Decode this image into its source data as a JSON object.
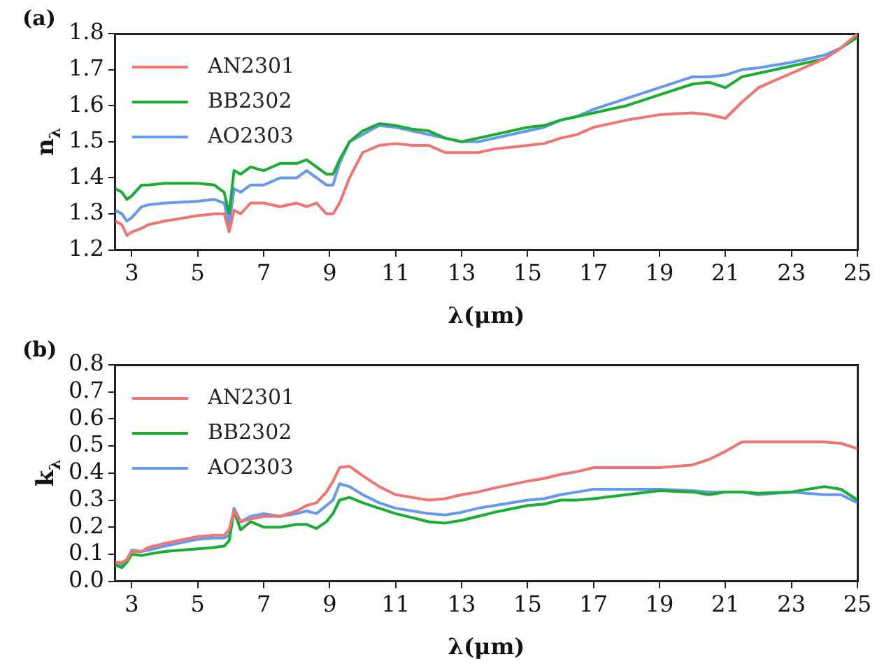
{
  "chart_data": [
    {
      "type": "line",
      "title": "(a)",
      "xlabel": "λ(μm)",
      "ylabel": "n$_{λ}$",
      "legend": "top left",
      "grid": false,
      "marker": "none",
      "line_style": "solid",
      "xlim": [
        2.5,
        25
      ],
      "xticks": [
        3,
        5,
        7,
        9,
        11,
        13,
        15,
        17,
        19,
        21,
        23,
        25
      ],
      "ylim": [
        1.2,
        1.8
      ],
      "yticks": [
        {
          "value": 1.2,
          "label": "1.2"
        },
        {
          "value": 1.3,
          "label": "1.3"
        },
        {
          "value": 1.4,
          "label": "1.4"
        },
        {
          "value": 1.5,
          "label": "1.5"
        },
        {
          "value": 1.6,
          "label": "1.6"
        },
        {
          "value": 1.7,
          "label": "1.7"
        },
        {
          "value": 1.8,
          "label": "1.8"
        }
      ],
      "x": [
        2.5,
        2.7,
        2.85,
        3,
        3.3,
        3.5,
        4,
        5,
        5.5,
        5.8,
        5.95,
        6.1,
        6.3,
        6.6,
        7,
        7.5,
        8,
        8.3,
        8.6,
        8.9,
        9.1,
        9.3,
        9.6,
        10,
        10.5,
        11,
        11.5,
        12,
        12.5,
        13,
        13.5,
        14,
        15,
        15.5,
        16,
        16.5,
        17,
        18,
        19,
        20,
        20.5,
        21,
        21.5,
        22,
        23,
        24,
        24.5,
        25
      ],
      "series": [
        {
          "name": "AN2301",
          "color": "#f07470",
          "values": [
            1.28,
            1.27,
            1.24,
            1.25,
            1.26,
            1.27,
            1.28,
            1.295,
            1.3,
            1.3,
            1.25,
            1.31,
            1.3,
            1.33,
            1.33,
            1.32,
            1.33,
            1.32,
            1.33,
            1.3,
            1.3,
            1.33,
            1.4,
            1.47,
            1.49,
            1.495,
            1.49,
            1.49,
            1.47,
            1.47,
            1.47,
            1.48,
            1.49,
            1.495,
            1.51,
            1.52,
            1.54,
            1.56,
            1.575,
            1.58,
            1.575,
            1.565,
            1.61,
            1.65,
            1.69,
            1.73,
            1.76,
            1.8
          ]
        },
        {
          "name": "BB2302",
          "color": "#1aad34",
          "values": [
            1.37,
            1.36,
            1.34,
            1.35,
            1.38,
            1.38,
            1.385,
            1.385,
            1.38,
            1.36,
            1.3,
            1.42,
            1.41,
            1.43,
            1.42,
            1.44,
            1.44,
            1.45,
            1.43,
            1.41,
            1.41,
            1.45,
            1.5,
            1.53,
            1.55,
            1.545,
            1.535,
            1.53,
            1.51,
            1.5,
            1.51,
            1.52,
            1.54,
            1.545,
            1.56,
            1.57,
            1.58,
            1.6,
            1.63,
            1.66,
            1.665,
            1.65,
            1.68,
            1.69,
            1.71,
            1.73,
            1.76,
            1.79
          ]
        },
        {
          "name": "AO2303",
          "color": "#6699ee",
          "values": [
            1.31,
            1.3,
            1.28,
            1.29,
            1.32,
            1.325,
            1.33,
            1.335,
            1.34,
            1.33,
            1.27,
            1.37,
            1.36,
            1.38,
            1.38,
            1.4,
            1.4,
            1.42,
            1.4,
            1.38,
            1.38,
            1.44,
            1.5,
            1.52,
            1.545,
            1.54,
            1.53,
            1.52,
            1.51,
            1.5,
            1.5,
            1.51,
            1.53,
            1.54,
            1.56,
            1.57,
            1.59,
            1.62,
            1.65,
            1.68,
            1.68,
            1.685,
            1.7,
            1.705,
            1.72,
            1.74,
            1.76,
            1.79
          ]
        }
      ]
    },
    {
      "type": "line",
      "title": "(b)",
      "xlabel": "λ(μm)",
      "ylabel": "k$_{λ}$",
      "legend": "top left",
      "grid": false,
      "marker": "none",
      "line_style": "solid",
      "xlim": [
        2.5,
        25
      ],
      "xticks": [
        3,
        5,
        7,
        9,
        11,
        13,
        15,
        17,
        19,
        21,
        23,
        25
      ],
      "ylim": [
        0,
        0.8
      ],
      "yticks": [
        {
          "value": 0,
          "label": "0.0"
        },
        {
          "value": 0.1,
          "label": "0.1"
        },
        {
          "value": 0.2,
          "label": "0.2"
        },
        {
          "value": 0.3,
          "label": "0.3"
        },
        {
          "value": 0.4,
          "label": "0.4"
        },
        {
          "value": 0.5,
          "label": "0.5"
        },
        {
          "value": 0.6,
          "label": "0.6"
        },
        {
          "value": 0.7,
          "label": "0.7"
        },
        {
          "value": 0.8,
          "label": "0.8"
        }
      ],
      "x": [
        2.5,
        2.7,
        2.85,
        3,
        3.3,
        3.5,
        4,
        5,
        5.5,
        5.8,
        5.95,
        6.1,
        6.3,
        6.6,
        7,
        7.5,
        8,
        8.3,
        8.6,
        8.9,
        9.1,
        9.3,
        9.6,
        10,
        10.5,
        11,
        11.5,
        12,
        12.5,
        13,
        13.5,
        14,
        15,
        15.5,
        16,
        16.5,
        17,
        18,
        19,
        20,
        20.5,
        21,
        21.5,
        22,
        23,
        24,
        24.5,
        25
      ],
      "series": [
        {
          "name": "AN2301",
          "color": "#f07470",
          "values": [
            0.07,
            0.07,
            0.08,
            0.11,
            0.11,
            0.125,
            0.14,
            0.165,
            0.17,
            0.17,
            0.19,
            0.26,
            0.22,
            0.23,
            0.24,
            0.24,
            0.26,
            0.28,
            0.29,
            0.33,
            0.37,
            0.42,
            0.425,
            0.39,
            0.35,
            0.32,
            0.31,
            0.3,
            0.305,
            0.32,
            0.33,
            0.345,
            0.37,
            0.38,
            0.395,
            0.405,
            0.42,
            0.42,
            0.42,
            0.43,
            0.45,
            0.48,
            0.515,
            0.515,
            0.515,
            0.515,
            0.51,
            0.49
          ]
        },
        {
          "name": "BB2302",
          "color": "#1aad34",
          "values": [
            0.06,
            0.05,
            0.07,
            0.1,
            0.095,
            0.1,
            0.11,
            0.12,
            0.125,
            0.13,
            0.15,
            0.26,
            0.19,
            0.22,
            0.2,
            0.2,
            0.21,
            0.21,
            0.195,
            0.22,
            0.25,
            0.3,
            0.31,
            0.29,
            0.27,
            0.25,
            0.235,
            0.22,
            0.215,
            0.225,
            0.24,
            0.255,
            0.28,
            0.285,
            0.3,
            0.3,
            0.305,
            0.32,
            0.335,
            0.33,
            0.32,
            0.33,
            0.33,
            0.325,
            0.33,
            0.35,
            0.34,
            0.3
          ]
        },
        {
          "name": "AO2303",
          "color": "#6699ee",
          "values": [
            0.07,
            0.06,
            0.08,
            0.115,
            0.11,
            0.115,
            0.13,
            0.155,
            0.16,
            0.16,
            0.17,
            0.27,
            0.22,
            0.24,
            0.25,
            0.24,
            0.25,
            0.26,
            0.25,
            0.28,
            0.3,
            0.36,
            0.35,
            0.32,
            0.29,
            0.27,
            0.26,
            0.25,
            0.245,
            0.255,
            0.27,
            0.28,
            0.3,
            0.305,
            0.32,
            0.33,
            0.34,
            0.34,
            0.34,
            0.335,
            0.33,
            0.33,
            0.33,
            0.32,
            0.33,
            0.32,
            0.32,
            0.29
          ]
        }
      ]
    }
  ]
}
